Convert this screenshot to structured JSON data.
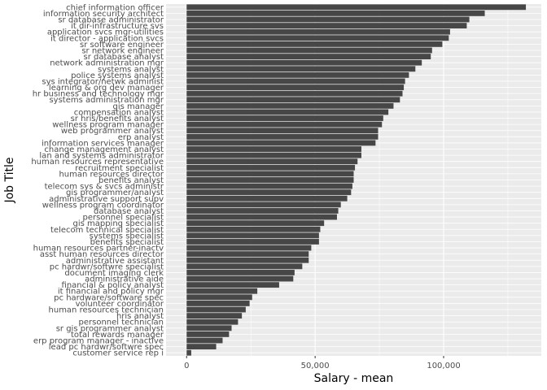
{
  "colors": {
    "panel_background": "#ebebeb",
    "grid_major": "#ffffff",
    "bar_fill": "#474747",
    "tick_text": "#4d4d4d",
    "axis_title_text": "#000000"
  },
  "chart_data": {
    "type": "bar",
    "orientation": "horizontal",
    "xlabel": "Salary - mean",
    "ylabel": "Job Title",
    "xlim": [
      -8000,
      138000
    ],
    "xticks": [
      0,
      50000,
      100000
    ],
    "xtick_labels": [
      "0",
      "50,000",
      "100,000"
    ],
    "grid": true,
    "legend": "none",
    "categories": [
      "chief information officer",
      "information security architect",
      "sr database administrator",
      "it dir-infrastructure svs",
      "application svcs mgr-utilities",
      "it director - application svcs",
      "sr software engineer",
      "sr network engineer",
      "sr database analyst",
      "network administration mgr",
      "systems analyst",
      "police systems analyst",
      "sys integrator/netwk administ",
      "learning & org dev manager",
      "hr business and technology mgr",
      "systems administration mgr",
      "gis manager",
      "compensation analyst",
      "sr hris/benefits analyst",
      "wellness program manager",
      "web programmer analyst",
      "erp analyst",
      "information services manager",
      "change management analyst",
      "lan and systems administrator",
      "human resources representative",
      "recruitment specialist",
      "human resources director",
      "benefits analyst",
      "telecom sys & svcs administr",
      "gis programmer/analyst",
      "administrative support supv",
      "wellness program coordinator",
      "database analyst",
      "personnel specialist",
      "gis mapping specialist",
      "telecom technical specialist",
      "systems specialist",
      "benefits specialist",
      "human resources partner-inactv",
      "asst human resources director",
      "administrative assistant",
      "pc hardwr/softwre specialist",
      "document imaging clerk",
      "administrative aide",
      "financial & policy analyst",
      "it financial and policy mgr",
      "pc hardware/software spec",
      "volunteer coordinator",
      "human resources technician",
      "hris analyst",
      "personnel technician",
      "sr gis programmer analyst",
      "total rewards manager",
      "erp program manager - inactive",
      "lead pc hardwr/softwre spec",
      "customer service rep i"
    ],
    "values": [
      132000,
      116000,
      110000,
      109000,
      102500,
      102000,
      99500,
      95500,
      95000,
      91500,
      89000,
      86500,
      85000,
      84500,
      84000,
      83000,
      80500,
      78500,
      76500,
      76000,
      74500,
      74500,
      73500,
      68000,
      68000,
      66500,
      65500,
      65000,
      65000,
      64500,
      64000,
      62500,
      60000,
      59000,
      58500,
      53500,
      52000,
      51500,
      51500,
      48500,
      47500,
      47500,
      45000,
      42000,
      41500,
      36000,
      27500,
      25500,
      24500,
      23000,
      21500,
      20000,
      17500,
      16500,
      14000,
      11500,
      1800
    ]
  }
}
